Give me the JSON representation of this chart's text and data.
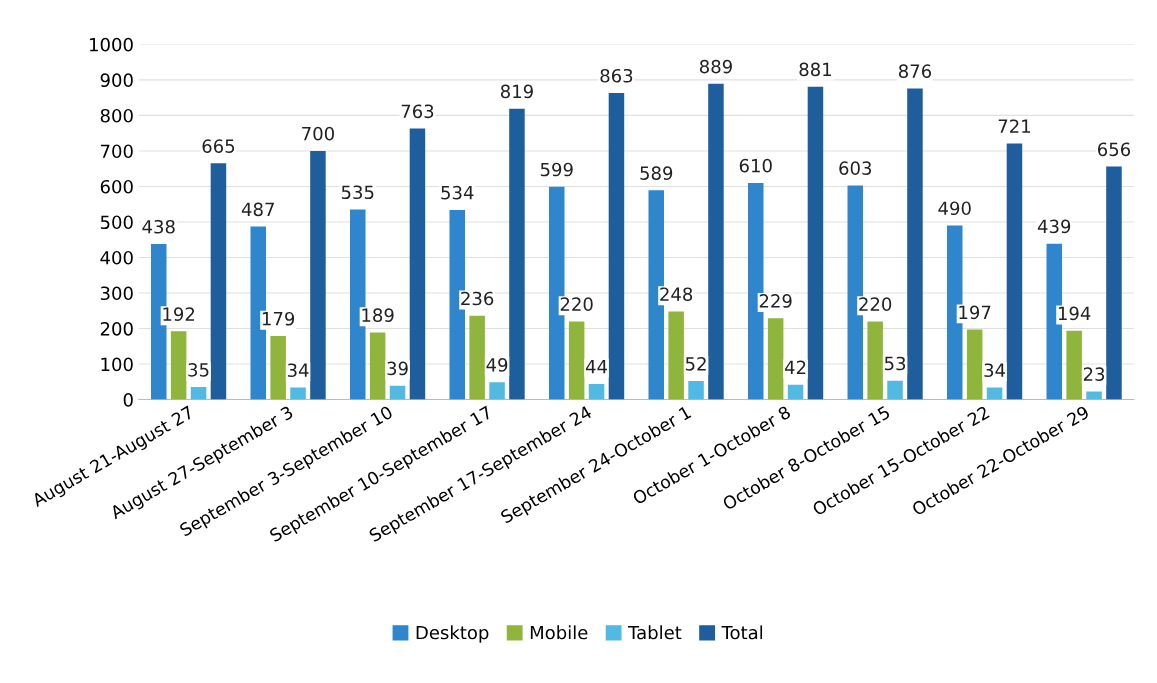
{
  "chart_data": {
    "type": "bar",
    "categories": [
      "August 21-August 27",
      "August 27-September 3",
      "September 3-September 10",
      "September 10-September 17",
      "September 17-September 24",
      "September 24-October 1",
      "October 1-October 8",
      "October 8-October 15",
      "October 15-October 22",
      "October 22-October 29"
    ],
    "series": [
      {
        "name": "Desktop",
        "color": "#2f86cc",
        "values": [
          438,
          487,
          535,
          534,
          599,
          589,
          610,
          603,
          490,
          439
        ]
      },
      {
        "name": "Mobile",
        "color": "#8fb53c",
        "values": [
          192,
          179,
          189,
          236,
          220,
          248,
          229,
          220,
          197,
          194
        ]
      },
      {
        "name": "Tablet",
        "color": "#52b9e2",
        "values": [
          35,
          34,
          39,
          49,
          44,
          52,
          42,
          53,
          34,
          23
        ]
      },
      {
        "name": "Total",
        "color": "#1e5e9c",
        "values": [
          665,
          700,
          763,
          819,
          863,
          889,
          881,
          876,
          721,
          656
        ]
      }
    ],
    "ylim": [
      0,
      1000
    ],
    "yticks": [
      0,
      100,
      200,
      300,
      400,
      500,
      600,
      700,
      800,
      900,
      1000
    ],
    "grid": "y",
    "legend": "bottom",
    "data_labels": true
  }
}
